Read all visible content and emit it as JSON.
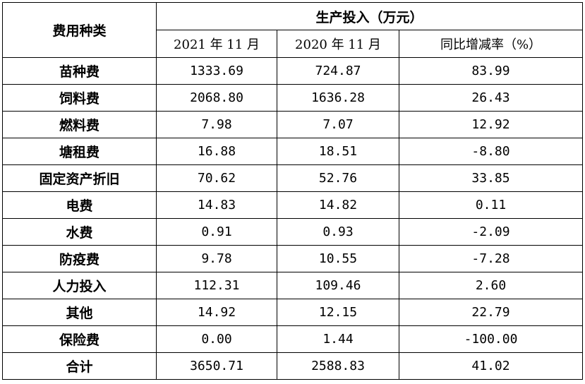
{
  "table": {
    "corner_header": "费用种类",
    "group_header": "生产投入（万元）",
    "sub_headers": [
      "2021 年 11 月",
      "2020 年 11 月",
      "同比增减率（%）"
    ],
    "rows": [
      {
        "label": "苗种费",
        "v2021": "1333.69",
        "v2020": "724.87",
        "change": "83.99"
      },
      {
        "label": "饲料费",
        "v2021": "2068.80",
        "v2020": "1636.28",
        "change": "26.43"
      },
      {
        "label": "燃料费",
        "v2021": "7.98",
        "v2020": "7.07",
        "change": "12.92"
      },
      {
        "label": "塘租费",
        "v2021": "16.88",
        "v2020": "18.51",
        "change": "-8.80"
      },
      {
        "label": "固定资产折旧",
        "v2021": "70.62",
        "v2020": "52.76",
        "change": "33.85"
      },
      {
        "label": "电费",
        "v2021": "14.83",
        "v2020": "14.82",
        "change": "0.11"
      },
      {
        "label": "水费",
        "v2021": "0.91",
        "v2020": "0.93",
        "change": "-2.09"
      },
      {
        "label": "防疫费",
        "v2021": "9.78",
        "v2020": "10.55",
        "change": "-7.28"
      },
      {
        "label": "人力投入",
        "v2021": "112.31",
        "v2020": "109.46",
        "change": "2.60"
      },
      {
        "label": "其他",
        "v2021": "14.92",
        "v2020": "12.15",
        "change": "22.79"
      },
      {
        "label": "保险费",
        "v2021": "0.00",
        "v2020": "1.44",
        "change": "-100.00"
      },
      {
        "label": "合计",
        "v2021": "3650.71",
        "v2020": "2588.83",
        "change": "41.02"
      }
    ]
  }
}
